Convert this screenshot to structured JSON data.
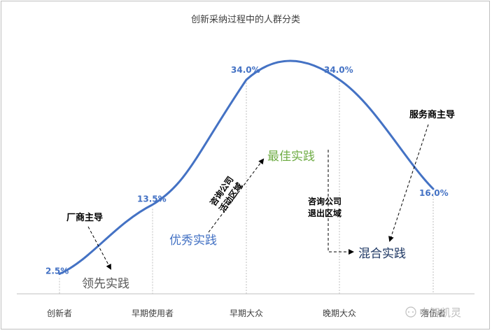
{
  "chart_data": {
    "type": "line",
    "title": "创新采纳过程中的人群分类",
    "categories": [
      "创新者",
      "早期使用者",
      "早期大众",
      "晚期大众",
      "落伍者"
    ],
    "values": [
      2.5,
      13.5,
      34.0,
      34.0,
      16.0
    ],
    "value_labels": [
      "2.5%",
      "13.5%",
      "34.0%",
      "34.0%",
      "16.0%"
    ],
    "annotations": {
      "vendor_led": "厂商主导",
      "leading_practice": "领先实践",
      "excellent_practice": "优秀实践",
      "best_practice": "最佳实践",
      "mixed_practice": "混合实践",
      "service_led": "服务商主导",
      "consulting_active": [
        "咨询公司",
        "活动区域"
      ],
      "consulting_exit": [
        "咨询公司",
        "退出区域"
      ]
    },
    "watermark": "中智凯灵",
    "grid": false
  },
  "colors": {
    "curve": "#4472c4",
    "value_label": "#4472c4",
    "best_practice": "#70ad47",
    "mixed_practice": "#1f3864",
    "leading_practice": "#595959",
    "excellent_practice": "#4472c4"
  }
}
